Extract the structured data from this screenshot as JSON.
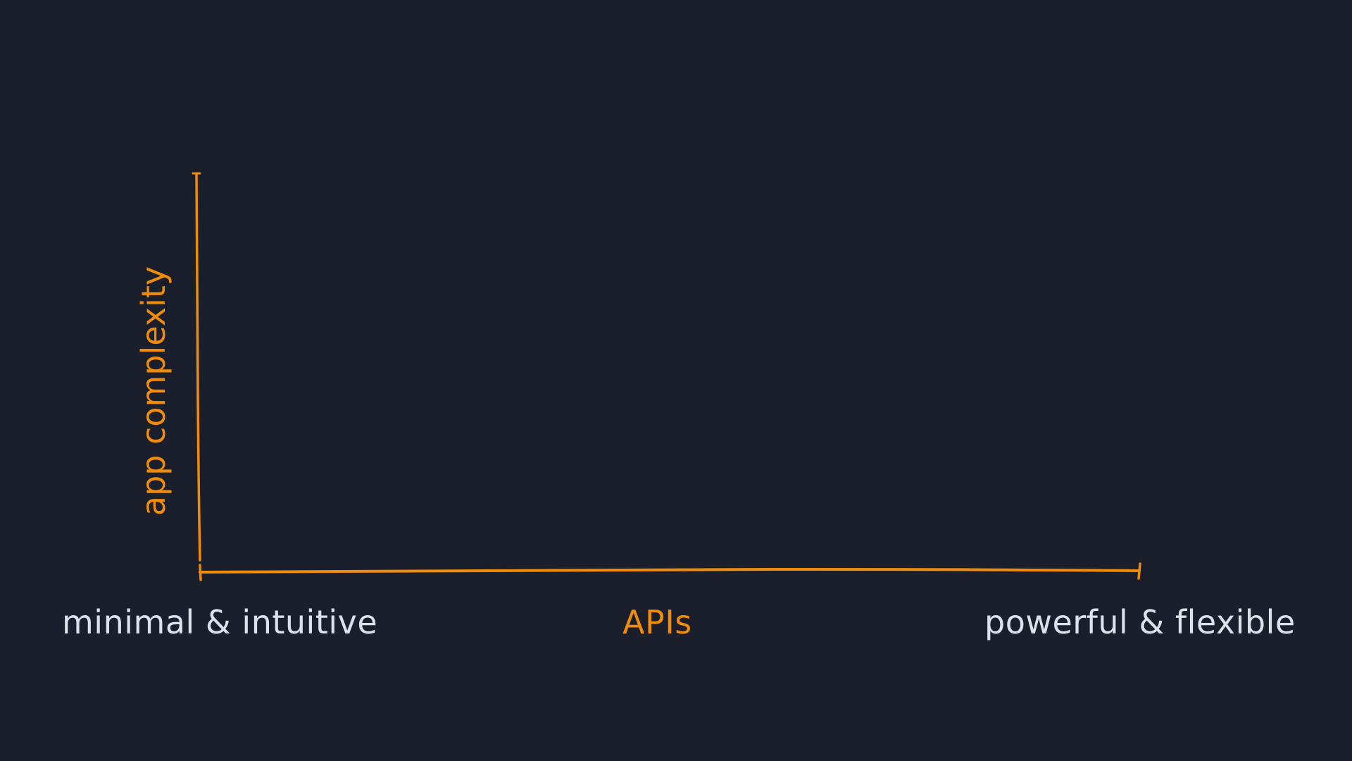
{
  "colors": {
    "background": "#1b1f2b",
    "accent": "#f08c0c",
    "text": "#dde2ea"
  },
  "diagram": {
    "y_axis_label": "app complexity",
    "x_axis_label": "APIs",
    "x_axis_left_label": "minimal & intuitive",
    "x_axis_right_label": "powerful & flexible"
  }
}
